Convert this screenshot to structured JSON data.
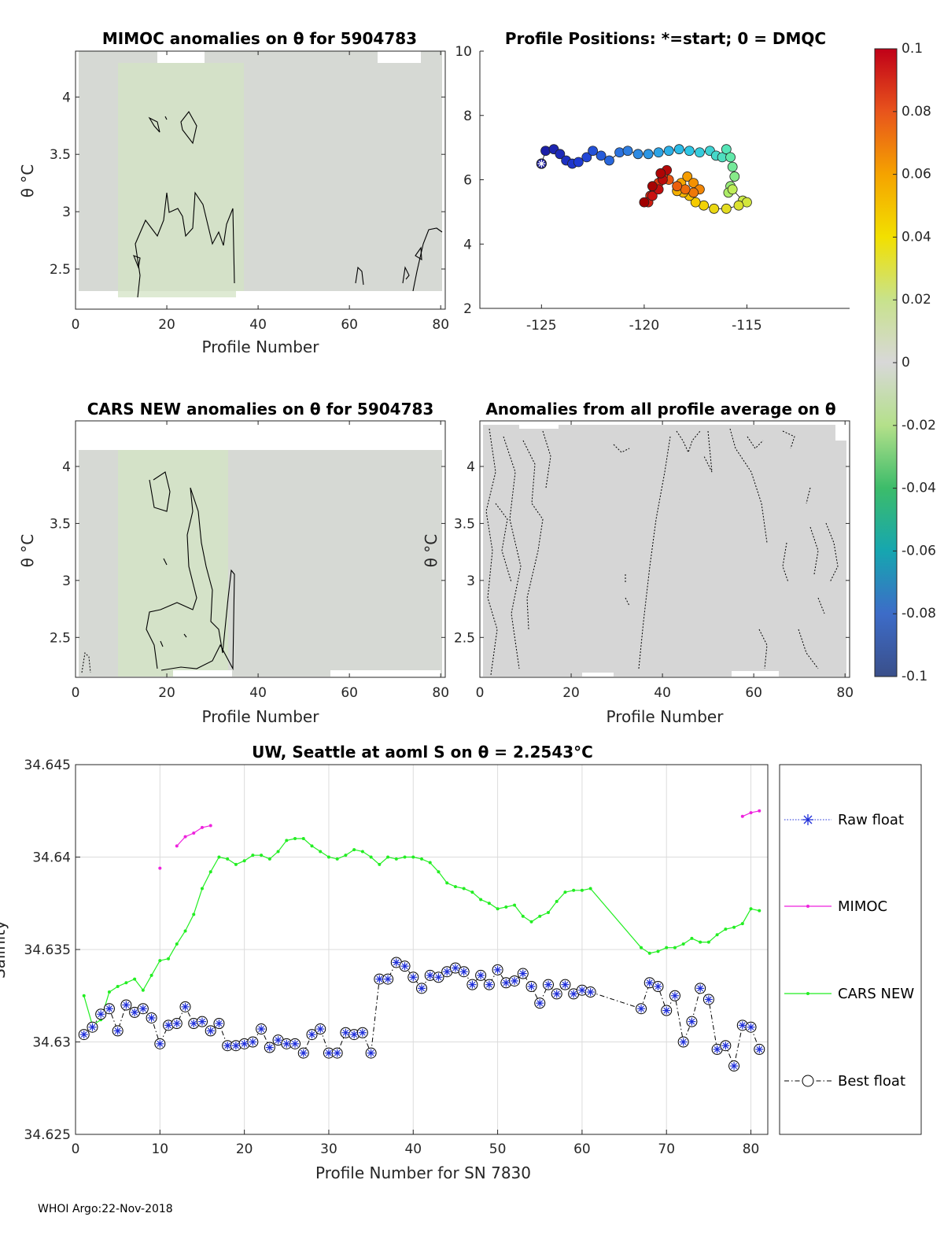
{
  "panels": {
    "mimoc": {
      "title": "MIMOC anomalies on θ  for 5904783",
      "xlabel": "Profile Number",
      "ylabel": "θ °C"
    },
    "positions": {
      "title": "Profile Positions: *=start; 0 = DMQC"
    },
    "cars": {
      "title": "CARS NEW anomalies on θ for 5904783",
      "xlabel": "Profile Number",
      "ylabel": "θ °C"
    },
    "all_avg": {
      "title": "Anomalies from all profile average on θ",
      "xlabel": "Profile Number",
      "ylabel": "θ °C"
    },
    "salinity": {
      "title": "UW, Seattle at aoml S on θ = 2.2543°C",
      "xlabel": "Profile Number for SN 7830",
      "ylabel": "Salinity"
    }
  },
  "footer": "WHOI Argo:22-Nov-2018",
  "colorbar": {
    "ticks": [
      "0.1",
      "0.08",
      "0.06",
      "0.04",
      "0.02",
      "0",
      "-0.02",
      "-0.04",
      "-0.06",
      "-0.08",
      "-0.1"
    ],
    "colors": [
      "#c00018",
      "#e8541c",
      "#f5a300",
      "#f2e000",
      "#c8e28c",
      "#d8d8d8",
      "#b4e08a",
      "#3cbc6a",
      "#16a6b0",
      "#3d6cc8",
      "#3a4f8a"
    ]
  },
  "legend": [
    "Raw float",
    "MIMOC",
    "CARS NEW",
    "Best float"
  ],
  "colors": {
    "raw": "#1f2fd8",
    "mimoc": "#ee22dd",
    "cars": "#22ee22",
    "best": "#000000"
  },
  "chart_data": [
    {
      "type": "heatmap",
      "name": "mimoc",
      "xlim": [
        0,
        81
      ],
      "ylim": [
        2.15,
        4.4
      ],
      "xticks": [
        "0",
        "20",
        "40",
        "60",
        "80"
      ],
      "yticks": [
        "2.5",
        "3",
        "3.5",
        "4"
      ]
    },
    {
      "type": "scatter",
      "name": "positions",
      "xlim": [
        -128,
        -110
      ],
      "ylim": [
        2,
        10
      ],
      "xticks": [
        "-125",
        "-120",
        "-115"
      ],
      "yticks": [
        "2",
        "4",
        "6",
        "8",
        "10"
      ],
      "lon": [
        -125,
        -124.8,
        -124.4,
        -124.1,
        -123.8,
        -123.5,
        -123.2,
        -122.8,
        -122.5,
        -122.1,
        -121.7,
        -121.2,
        -120.8,
        -120.3,
        -119.8,
        -119.3,
        -118.8,
        -118.3,
        -117.8,
        -117.3,
        -116.8,
        -116.5,
        -116.2,
        -116.0,
        -115.8,
        -115.7,
        -115.6,
        -115.8,
        -115.9,
        -115.7,
        -115.2,
        -115.0,
        -115.4,
        -116.0,
        -116.6,
        -117.1,
        -117.5,
        -117.8,
        -118.1,
        -118.4,
        -118.2,
        -117.9,
        -117.6,
        -117.3,
        -117.6,
        -118.0,
        -118.4,
        -118.8,
        -119.1,
        -119.3,
        -119.5,
        -119.7,
        -119.8,
        -119.6,
        -119.3,
        -119.1,
        -118.9,
        -119.2,
        -119.6,
        -120.0
      ],
      "lat": [
        6.5,
        6.9,
        6.95,
        6.8,
        6.6,
        6.5,
        6.55,
        6.7,
        6.9,
        6.75,
        6.6,
        6.85,
        6.9,
        6.8,
        6.8,
        6.85,
        6.9,
        6.95,
        6.9,
        6.85,
        6.9,
        6.75,
        6.7,
        6.95,
        6.7,
        6.4,
        6.1,
        5.8,
        5.6,
        5.7,
        5.35,
        5.3,
        5.2,
        5.1,
        5.1,
        5.2,
        5.3,
        5.5,
        5.6,
        5.65,
        5.9,
        6.1,
        5.9,
        5.7,
        5.6,
        5.7,
        5.8,
        6.0,
        6.1,
        5.9,
        5.7,
        5.5,
        5.3,
        5.5,
        5.7,
        6.0,
        6.3,
        6.2,
        5.8,
        5.3
      ],
      "start": [
        -125,
        6.5
      ]
    },
    {
      "type": "heatmap",
      "name": "cars",
      "xlim": [
        0,
        81
      ],
      "ylim": [
        2.15,
        4.4
      ],
      "xticks": [
        "0",
        "20",
        "40",
        "60",
        "80"
      ],
      "yticks": [
        "2.5",
        "3",
        "3.5",
        "4"
      ]
    },
    {
      "type": "heatmap",
      "name": "all_avg",
      "xlim": [
        0,
        81
      ],
      "ylim": [
        2.15,
        4.4
      ],
      "xticks": [
        "0",
        "20",
        "40",
        "60",
        "80"
      ],
      "yticks": [
        "2.5",
        "3",
        "3.5",
        "4"
      ]
    },
    {
      "type": "line",
      "name": "salinity",
      "title": "UW, Seattle at aoml S on θ = 2.2543°C",
      "xlabel": "Profile Number for SN 7830",
      "ylabel": "Salinity",
      "xlim": [
        0,
        82
      ],
      "ylim": [
        34.625,
        34.645
      ],
      "xticks": [
        "0",
        "10",
        "20",
        "30",
        "40",
        "50",
        "60",
        "70",
        "80"
      ],
      "yticks": [
        "34.625",
        "34.63",
        "34.635",
        "34.64",
        "34.645"
      ],
      "series": [
        {
          "name": "MIMOC",
          "x": [
            10,
            12,
            13,
            14,
            15,
            16,
            79,
            80,
            81
          ],
          "y": [
            34.6394,
            34.6406,
            34.6411,
            34.6413,
            34.6416,
            34.6417,
            34.6422,
            34.6424,
            34.6425
          ],
          "breaks": [
            1,
            6
          ]
        },
        {
          "name": "CARS NEW",
          "x": [
            1,
            2,
            3,
            4,
            5,
            6,
            7,
            8,
            9,
            10,
            11,
            12,
            13,
            14,
            15,
            16,
            17,
            18,
            19,
            20,
            21,
            22,
            23,
            24,
            25,
            26,
            27,
            28,
            29,
            30,
            31,
            32,
            33,
            34,
            35,
            36,
            37,
            38,
            39,
            40,
            41,
            42,
            43,
            44,
            45,
            46,
            47,
            48,
            49,
            50,
            51,
            52,
            53,
            54,
            55,
            56,
            57,
            58,
            59,
            60,
            61,
            67,
            68,
            69,
            70,
            71,
            72,
            73,
            74,
            75,
            76,
            77,
            78,
            79,
            80,
            81
          ],
          "y": [
            34.6325,
            34.6309,
            34.6312,
            34.6327,
            34.633,
            34.6332,
            34.6334,
            34.6328,
            34.6336,
            34.6344,
            34.6345,
            34.6353,
            34.636,
            34.6369,
            34.6383,
            34.6392,
            34.64,
            34.6399,
            34.6396,
            34.6398,
            34.6401,
            34.6401,
            34.6399,
            34.6403,
            34.6409,
            34.641,
            34.641,
            34.6406,
            34.6403,
            34.64,
            34.6399,
            34.6401,
            34.6404,
            34.6403,
            34.64,
            34.6396,
            34.64,
            34.6399,
            34.64,
            34.64,
            34.6399,
            34.6397,
            34.6392,
            34.6386,
            34.6384,
            34.6383,
            34.6381,
            34.6377,
            34.6375,
            34.6372,
            34.6373,
            34.6374,
            34.6368,
            34.6365,
            34.6368,
            34.637,
            34.6376,
            34.6381,
            34.6382,
            34.6382,
            34.6383,
            34.6351,
            34.6348,
            34.6349,
            34.6351,
            34.6351,
            34.6353,
            34.6356,
            34.6354,
            34.6354,
            34.6358,
            34.6361,
            34.6362,
            34.6364,
            34.6372,
            34.6371
          ]
        },
        {
          "name": "Best float",
          "x": [
            1,
            2,
            3,
            4,
            5,
            6,
            7,
            8,
            9,
            10,
            11,
            12,
            13,
            14,
            15,
            16,
            17,
            18,
            19,
            20,
            21,
            22,
            23,
            24,
            25,
            26,
            27,
            28,
            29,
            30,
            31,
            32,
            33,
            34,
            35,
            36,
            37,
            38,
            39,
            40,
            41,
            42,
            43,
            44,
            45,
            46,
            47,
            48,
            49,
            50,
            51,
            52,
            53,
            54,
            55,
            56,
            57,
            58,
            59,
            60,
            61,
            67,
            68,
            69,
            70,
            71,
            72,
            73,
            74,
            75,
            76,
            77,
            78,
            79,
            80,
            81
          ],
          "y": [
            34.6304,
            34.6308,
            34.6315,
            34.6318,
            34.6306,
            34.632,
            34.6316,
            34.6318,
            34.6313,
            34.6299,
            34.6309,
            34.631,
            34.6319,
            34.631,
            34.6311,
            34.6306,
            34.631,
            34.6298,
            34.6298,
            34.6299,
            34.63,
            34.6307,
            34.6297,
            34.6301,
            34.6299,
            34.6299,
            34.6294,
            34.6304,
            34.6307,
            34.6294,
            34.6294,
            34.6305,
            34.6304,
            34.6305,
            34.6294,
            34.6334,
            34.6334,
            34.6343,
            34.6341,
            34.6335,
            34.6329,
            34.6336,
            34.6335,
            34.6338,
            34.634,
            34.6338,
            34.6331,
            34.6336,
            34.6331,
            34.6339,
            34.6332,
            34.6333,
            34.6337,
            34.633,
            34.6321,
            34.6331,
            34.6326,
            34.6331,
            34.6326,
            34.6328,
            34.6327,
            34.6318,
            34.6332,
            34.633,
            34.6317,
            34.6325,
            34.63,
            34.6311,
            34.6329,
            34.6323,
            34.6296,
            34.6298,
            34.6287,
            34.6309,
            34.6308,
            34.6296
          ]
        }
      ]
    }
  ]
}
